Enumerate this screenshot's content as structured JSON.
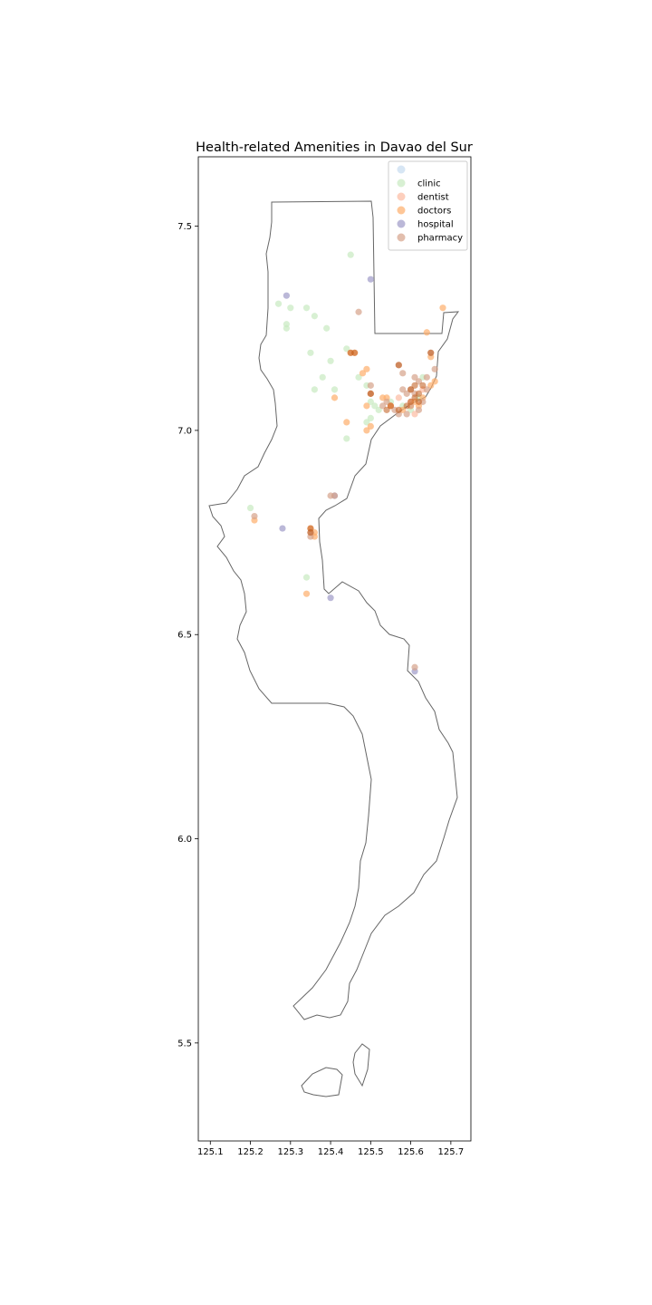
{
  "chart_data": {
    "type": "scatter",
    "title": "Health-related Amenities in Davao del Sur",
    "xlabel": "",
    "ylabel": "",
    "xlim": [
      125.07,
      125.75
    ],
    "ylim": [
      5.26,
      7.67
    ],
    "xticks": [
      {
        "value": 125.1,
        "label": "125.1"
      },
      {
        "value": 125.2,
        "label": "125.2"
      },
      {
        "value": 125.3,
        "label": "125.3"
      },
      {
        "value": 125.4,
        "label": "125.4"
      },
      {
        "value": 125.5,
        "label": "125.5"
      },
      {
        "value": 125.6,
        "label": "125.6"
      },
      {
        "value": 125.7,
        "label": "125.7"
      }
    ],
    "yticks": [
      {
        "value": 5.5,
        "label": "5.5"
      },
      {
        "value": 6.0,
        "label": "6.0"
      },
      {
        "value": 6.5,
        "label": "6.5"
      },
      {
        "value": 7.0,
        "label": "7.0"
      },
      {
        "value": 7.5,
        "label": "7.5"
      }
    ],
    "grid": false,
    "legend_position": "top-right",
    "boundary_color": "#666666",
    "series": [
      {
        "name": "",
        "color": "#c6dbef",
        "points": []
      },
      {
        "name": "clinic",
        "color": "#c7e9c0",
        "points": [
          [
            125.45,
            7.43
          ],
          [
            125.27,
            7.31
          ],
          [
            125.3,
            7.3
          ],
          [
            125.34,
            7.3
          ],
          [
            125.29,
            7.26
          ],
          [
            125.29,
            7.25
          ],
          [
            125.36,
            7.28
          ],
          [
            125.39,
            7.25
          ],
          [
            125.35,
            7.19
          ],
          [
            125.4,
            7.17
          ],
          [
            125.38,
            7.13
          ],
          [
            125.36,
            7.1
          ],
          [
            125.41,
            7.1
          ],
          [
            125.44,
            7.2
          ],
          [
            125.47,
            7.13
          ],
          [
            125.49,
            7.11
          ],
          [
            125.5,
            7.07
          ],
          [
            125.5,
            7.03
          ],
          [
            125.49,
            7.02
          ],
          [
            125.44,
            6.98
          ],
          [
            125.2,
            6.81
          ],
          [
            125.34,
            6.64
          ],
          [
            125.52,
            7.05
          ],
          [
            125.55,
            7.07
          ],
          [
            125.58,
            7.06
          ],
          [
            125.6,
            7.05
          ],
          [
            125.62,
            7.08
          ],
          [
            125.63,
            7.13
          ],
          [
            125.51,
            7.06
          ]
        ]
      },
      {
        "name": "dentist",
        "color": "#fcbba1",
        "points": [
          [
            125.57,
            7.08
          ],
          [
            125.6,
            7.07
          ],
          [
            125.63,
            7.1
          ],
          [
            125.55,
            7.06
          ],
          [
            125.61,
            7.04
          ]
        ]
      },
      {
        "name": "doctors",
        "color": "#fdae6b",
        "points": [
          [
            125.68,
            7.3
          ],
          [
            125.64,
            7.24
          ],
          [
            125.65,
            7.18
          ],
          [
            125.45,
            7.19
          ],
          [
            125.46,
            7.19
          ],
          [
            125.48,
            7.14
          ],
          [
            125.49,
            7.15
          ],
          [
            125.41,
            7.08
          ],
          [
            125.5,
            7.09
          ],
          [
            125.49,
            7.06
          ],
          [
            125.44,
            7.02
          ],
          [
            125.49,
            7.0
          ],
          [
            125.5,
            7.01
          ],
          [
            125.53,
            7.08
          ],
          [
            125.54,
            7.08
          ],
          [
            125.55,
            7.06
          ],
          [
            125.58,
            7.05
          ],
          [
            125.6,
            7.06
          ],
          [
            125.61,
            7.07
          ],
          [
            125.62,
            7.06
          ],
          [
            125.63,
            7.08
          ],
          [
            125.65,
            7.11
          ],
          [
            125.66,
            7.12
          ],
          [
            125.21,
            6.78
          ],
          [
            125.35,
            6.76
          ],
          [
            125.36,
            6.75
          ],
          [
            125.34,
            6.6
          ],
          [
            125.36,
            6.74
          ]
        ]
      },
      {
        "name": "hospital",
        "color": "#9e9ac8",
        "points": [
          [
            125.29,
            7.33
          ],
          [
            125.5,
            7.37
          ],
          [
            125.28,
            6.76
          ],
          [
            125.4,
            6.59
          ],
          [
            125.41,
            6.84
          ],
          [
            125.61,
            6.41
          ]
        ]
      },
      {
        "name": "pharmacy",
        "color": "#d6a38a",
        "points": [
          [
            125.47,
            7.29
          ],
          [
            125.65,
            7.19
          ],
          [
            125.57,
            7.16
          ],
          [
            125.58,
            7.14
          ],
          [
            125.5,
            7.11
          ],
          [
            125.5,
            7.09
          ],
          [
            125.6,
            7.1
          ],
          [
            125.61,
            7.13
          ],
          [
            125.62,
            7.12
          ],
          [
            125.64,
            7.13
          ],
          [
            125.66,
            7.15
          ],
          [
            125.58,
            7.1
          ],
          [
            125.59,
            7.09
          ],
          [
            125.54,
            7.07
          ],
          [
            125.56,
            7.05
          ],
          [
            125.57,
            7.04
          ],
          [
            125.6,
            7.06
          ],
          [
            125.62,
            7.05
          ],
          [
            125.63,
            7.07
          ],
          [
            125.64,
            7.1
          ],
          [
            125.21,
            6.79
          ],
          [
            125.35,
            6.74
          ],
          [
            125.35,
            6.75
          ],
          [
            125.41,
            6.84
          ],
          [
            125.4,
            6.84
          ],
          [
            125.61,
            6.42
          ],
          [
            125.53,
            7.06
          ],
          [
            125.59,
            7.04
          ],
          [
            125.61,
            7.09
          ]
        ]
      }
    ],
    "darker_overlays": [
      [
        125.45,
        7.19
      ],
      [
        125.46,
        7.19
      ],
      [
        125.54,
        7.05
      ],
      [
        125.55,
        7.06
      ],
      [
        125.57,
        7.05
      ],
      [
        125.59,
        7.06
      ],
      [
        125.6,
        7.07
      ],
      [
        125.61,
        7.08
      ],
      [
        125.62,
        7.07
      ],
      [
        125.62,
        7.09
      ],
      [
        125.63,
        7.11
      ],
      [
        125.61,
        7.11
      ],
      [
        125.6,
        7.1
      ],
      [
        125.5,
        7.09
      ],
      [
        125.57,
        7.16
      ],
      [
        125.65,
        7.19
      ],
      [
        125.35,
        6.76
      ],
      [
        125.35,
        6.75
      ]
    ],
    "darker_overlay_color": "#c05a1a"
  }
}
